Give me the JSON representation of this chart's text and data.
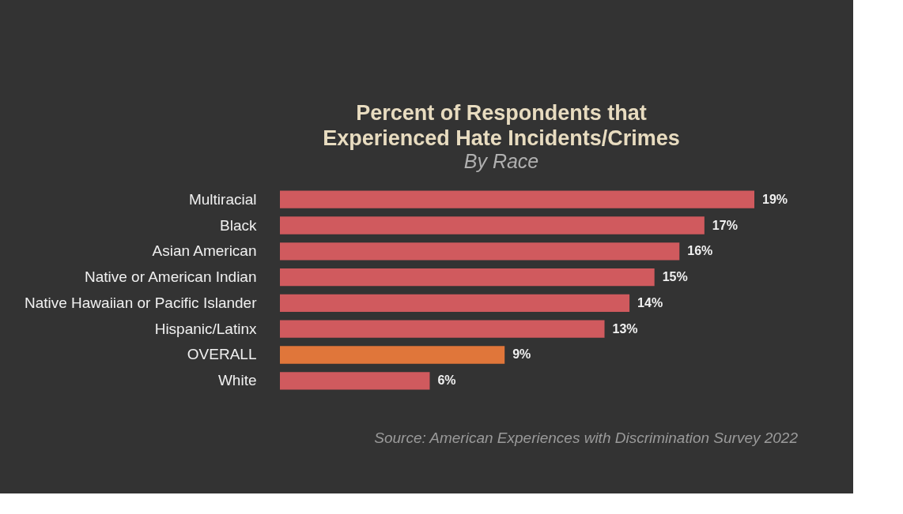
{
  "chart_data": {
    "type": "bar",
    "orientation": "horizontal",
    "title": "Percent of Respondents that Experienced Hate Incidents/Crimes",
    "subtitle": "By Race",
    "categories": [
      "Multiracial",
      "Black",
      "Asian American",
      "Native or American Indian",
      "Native Hawaiian or Pacific Islander",
      "Hispanic/Latinx",
      "OVERALL",
      "White"
    ],
    "values": [
      19,
      17,
      16,
      15,
      14,
      13,
      9,
      6
    ],
    "value_labels": [
      "19%",
      "17%",
      "16%",
      "15%",
      "14%",
      "13%",
      "9%",
      "6%"
    ],
    "colors": [
      "#d05a5e",
      "#d05a5e",
      "#d05a5e",
      "#d05a5e",
      "#d05a5e",
      "#d05a5e",
      "#e0763a",
      "#d05a5e"
    ],
    "annotations": [
      "Source: American Experiences with Discrimination Survey 2022"
    ]
  }
}
